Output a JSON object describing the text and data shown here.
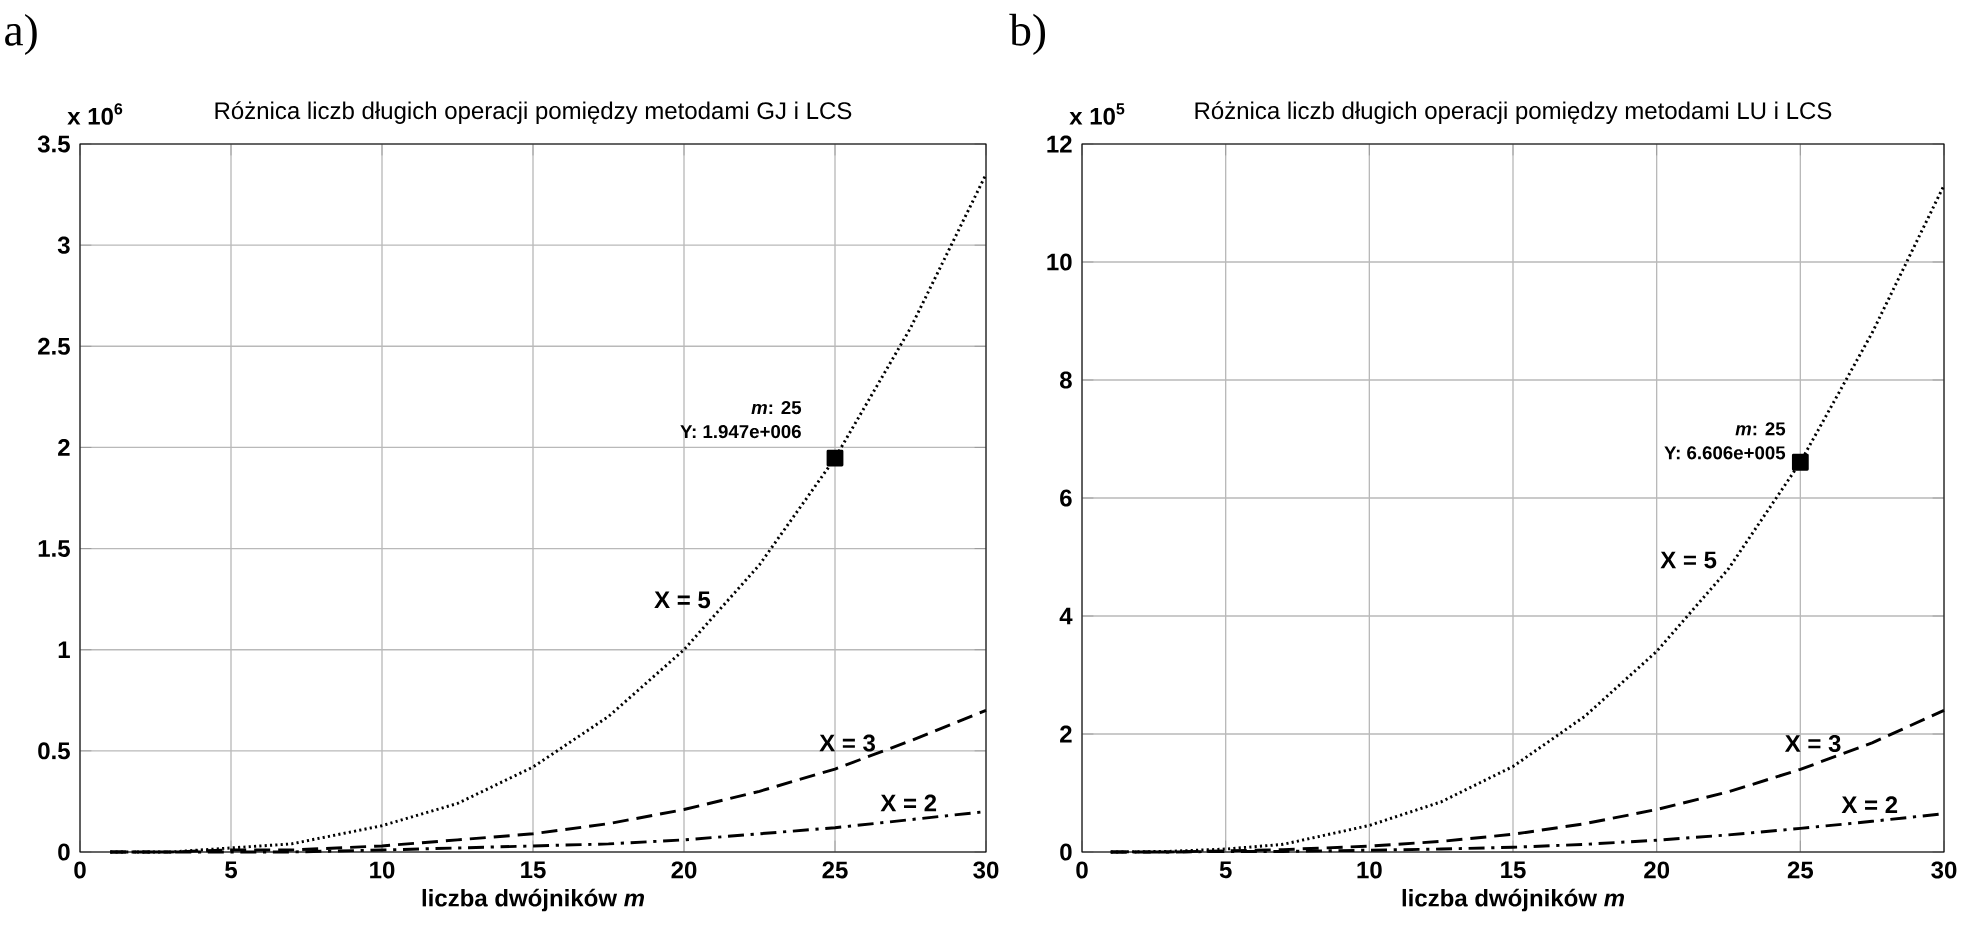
{
  "chart_data": [
    {
      "type": "line",
      "title": "Różnica liczb długich operacji pomiędzy metodami GJ i LCS",
      "xlabel": "liczba dwójników *m*",
      "x": [
        1,
        3,
        5,
        7,
        10,
        12.5,
        15,
        17.5,
        20,
        22.5,
        25,
        27.5,
        30
      ],
      "series": [
        {
          "name": "X = 5",
          "color": "#000000",
          "line_style": "dotted",
          "values": [
            0,
            0,
            0.02,
            0.04,
            0.13,
            0.24,
            0.42,
            0.67,
            1.0,
            1.42,
            1.947,
            2.59,
            3.35
          ]
        },
        {
          "name": "X = 3",
          "color": "#000000",
          "line_style": "dashed",
          "values": [
            0,
            0,
            0.01,
            0.01,
            0.03,
            0.06,
            0.09,
            0.14,
            0.21,
            0.3,
            0.41,
            0.55,
            0.7
          ]
        },
        {
          "name": "X = 2",
          "color": "#000000",
          "line_style": "dashdot",
          "values": [
            0,
            0,
            0,
            0,
            0.01,
            0.02,
            0.03,
            0.04,
            0.06,
            0.09,
            0.12,
            0.16,
            0.2
          ]
        },
        {
          "type": "scatter",
          "color": "#000000",
          "marker": "square",
          "x": [
            25
          ],
          "values": [
            1.947
          ]
        }
      ],
      "xlim": [
        0,
        30
      ],
      "ylim": [
        0,
        3.5
      ],
      "xticks": [
        0,
        5,
        10,
        15,
        20,
        25,
        30
      ],
      "yticks": [
        0,
        0.5,
        1,
        1.5,
        2,
        2.5,
        3,
        3.5
      ],
      "grid": true,
      "annotations": [
        "a)",
        "x 10$^{6}$",
        "*m*: 25",
        "Y: 1.947e+006"
      ]
    },
    {
      "type": "line",
      "title": "Różnica liczb długich operacji pomiędzy metodami LU i LCS",
      "xlabel": "liczba dwójników *m*",
      "x": [
        1,
        3,
        5,
        7,
        10,
        12.5,
        15,
        17.5,
        20,
        22.5,
        25,
        27.5,
        30
      ],
      "series": [
        {
          "name": "X = 5",
          "color": "#000000",
          "line_style": "dotted",
          "values": [
            0,
            0.01,
            0.05,
            0.13,
            0.45,
            0.85,
            1.45,
            2.3,
            3.4,
            4.8,
            6.606,
            8.8,
            11.3
          ]
        },
        {
          "name": "X = 3",
          "color": "#000000",
          "line_style": "dashed",
          "values": [
            0,
            0,
            0.02,
            0.04,
            0.1,
            0.18,
            0.3,
            0.48,
            0.72,
            1.02,
            1.4,
            1.85,
            2.4
          ]
        },
        {
          "name": "X = 2",
          "color": "#000000",
          "line_style": "dashdot",
          "values": [
            0,
            0,
            0.01,
            0.01,
            0.03,
            0.05,
            0.08,
            0.13,
            0.2,
            0.29,
            0.4,
            0.52,
            0.65
          ]
        },
        {
          "type": "scatter",
          "color": "#000000",
          "marker": "square",
          "x": [
            25
          ],
          "values": [
            6.606
          ]
        }
      ],
      "xlim": [
        0,
        30
      ],
      "ylim": [
        0,
        12
      ],
      "xticks": [
        0,
        5,
        10,
        15,
        20,
        25,
        30
      ],
      "yticks": [
        0,
        2,
        4,
        6,
        8,
        10,
        12
      ],
      "grid": true,
      "annotations": [
        "b)",
        "x 10$^{5}$",
        "*m*: 25",
        "Y: 6.606e+005"
      ]
    }
  ]
}
